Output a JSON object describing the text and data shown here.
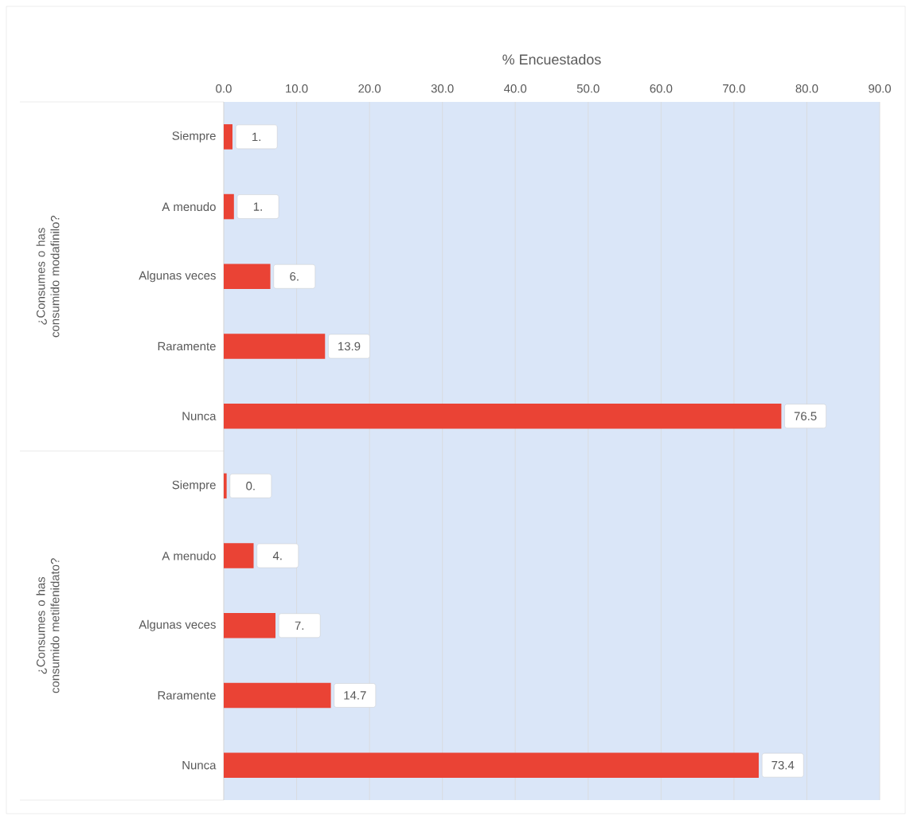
{
  "chart_data": {
    "type": "bar",
    "orientation": "horizontal",
    "xlabel": "% Encuestados",
    "categories": [
      "Siempre",
      "A menudo",
      "Algunas veces",
      "Raramente",
      "Nunca",
      "Siempre",
      "A menudo",
      "Algunas veces",
      "Raramente",
      "Nunca"
    ],
    "values": [
      1.2,
      1.4,
      6.4,
      13.9,
      76.5,
      0.4,
      4.1,
      7.1,
      14.7,
      73.4
    ],
    "value_labels": [
      "1.",
      "1.",
      "6.",
      "13.9",
      "76.5",
      "0.",
      "4.",
      "7.",
      "14.7",
      "73.4"
    ],
    "color": "#ea4335",
    "xlim": [
      0,
      90
    ],
    "xticks": [
      {
        "value": 0,
        "label": "0.0"
      },
      {
        "value": 10,
        "label": "10.0"
      },
      {
        "value": 20,
        "label": "20.0"
      },
      {
        "value": 30,
        "label": "30.0"
      },
      {
        "value": 40,
        "label": "40.0"
      },
      {
        "value": 50,
        "label": "50.0"
      },
      {
        "value": 60,
        "label": "60.0"
      },
      {
        "value": 70,
        "label": "70.0"
      },
      {
        "value": 80,
        "label": "80.0"
      },
      {
        "value": 90,
        "label": "90.0"
      }
    ],
    "grid": "x",
    "annotations": [
      "¿Consumes o has consumido modafinilo?",
      "¿Consumes o has consumido metilfenidato?"
    ]
  }
}
